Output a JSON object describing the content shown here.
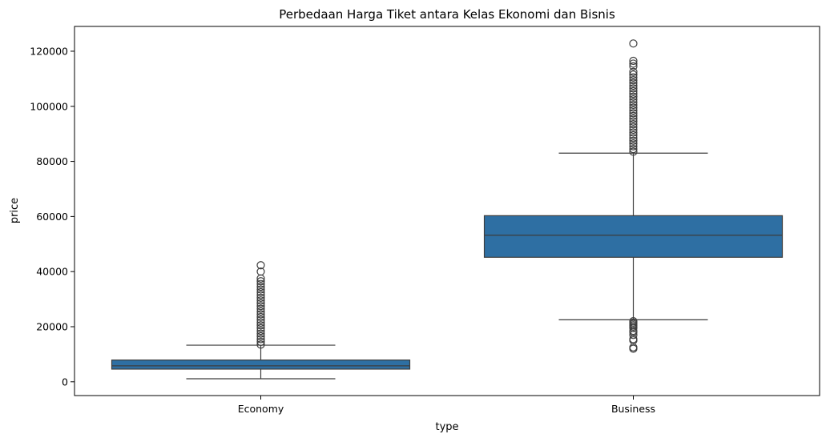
{
  "chart_data": {
    "type": "box",
    "title": "Perbedaan Harga Tiket antara Kelas Ekonomi dan Bisnis",
    "xlabel": "type",
    "ylabel": "price",
    "ylim": [
      -5000,
      129000
    ],
    "yticks": [
      0,
      20000,
      40000,
      60000,
      80000,
      100000,
      120000
    ],
    "ytick_labels": [
      "0",
      "20000",
      "40000",
      "60000",
      "80000",
      "100000",
      "120000"
    ],
    "grid": false,
    "box_color": "#2e6fa3",
    "categories": [
      "Economy",
      "Business"
    ],
    "boxes": [
      {
        "category": "Economy",
        "whisker_low": 1100,
        "q1": 4600,
        "median": 5800,
        "q3": 7900,
        "whisker_high": 13300,
        "outliers": [
          13500,
          14500,
          15500,
          16500,
          17500,
          18500,
          19500,
          20500,
          21500,
          22500,
          23500,
          24500,
          25500,
          26500,
          27500,
          28500,
          29500,
          30500,
          31500,
          32500,
          33500,
          34500,
          35500,
          36500,
          37500,
          40000,
          42300
        ]
      },
      {
        "category": "Business",
        "whisker_low": 22500,
        "q1": 45200,
        "median": 53200,
        "q3": 60300,
        "whisker_high": 83000,
        "outliers": [
          12000,
          12500,
          15000,
          15500,
          17000,
          18000,
          18500,
          19500,
          20000,
          20500,
          21000,
          21500,
          22000,
          83500,
          84500,
          85500,
          86500,
          87500,
          88500,
          89500,
          90500,
          91500,
          92500,
          93500,
          94500,
          95500,
          96500,
          97500,
          98500,
          99500,
          100500,
          101500,
          102500,
          103500,
          104500,
          105500,
          106500,
          107500,
          108500,
          109500,
          110500,
          111500,
          112500,
          114500,
          115500,
          116500,
          122800
        ]
      }
    ]
  }
}
